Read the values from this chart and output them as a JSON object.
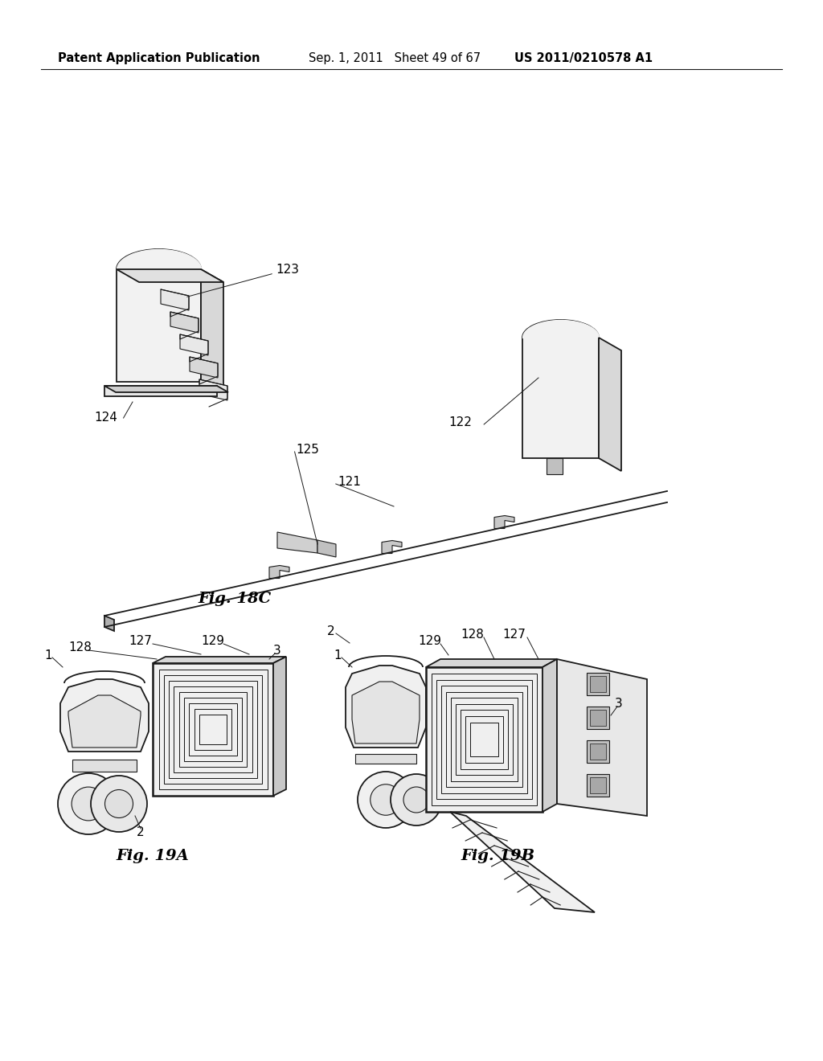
{
  "bg_color": "#ffffff",
  "header_left": "Patent Application Publication",
  "header_mid": "Sep. 1, 2011   Sheet 49 of 67",
  "header_right": "US 2011/0210578 A1",
  "fig18c_label": "Fig. 18C",
  "fig19a_label": "Fig. 19A",
  "fig19b_label": "Fig. 19B",
  "line_color": "#1a1a1a",
  "text_color": "#000000",
  "header_fontsize": 10.5,
  "label_fontsize": 14,
  "ref_fontsize": 11,
  "fig_width": 10.24,
  "fig_height": 13.2
}
